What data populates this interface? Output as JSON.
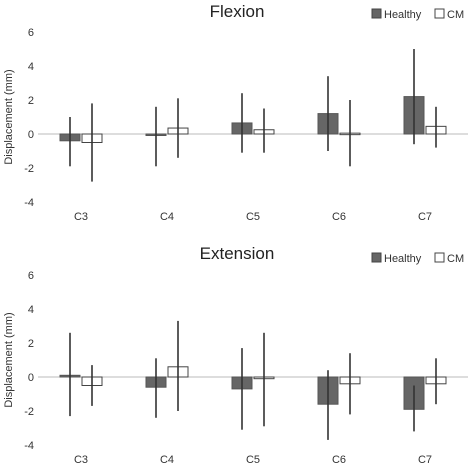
{
  "chart_data": [
    {
      "type": "bar",
      "title": "Flexion",
      "ylabel": "Displacement (mm)",
      "xlabel": "",
      "ylim": [
        -4,
        6
      ],
      "yticks": [
        -4,
        -2,
        0,
        2,
        4,
        6
      ],
      "categories": [
        "C3",
        "C4",
        "C5",
        "C6",
        "C7"
      ],
      "legend_position": "top-right",
      "series": [
        {
          "name": "Healthy",
          "color": "#666666",
          "fill": "solid",
          "values": [
            -0.4,
            -0.05,
            0.65,
            1.2,
            2.2
          ],
          "err_low": [
            -1.9,
            -1.9,
            -1.1,
            -1.0,
            -0.6
          ],
          "err_high": [
            1.0,
            1.6,
            2.4,
            3.4,
            5.0
          ]
        },
        {
          "name": "CM",
          "color": "#ffffff",
          "fill": "outline",
          "values": [
            -0.5,
            0.35,
            0.25,
            0.05,
            0.45
          ],
          "err_low": [
            -2.8,
            -1.4,
            -1.1,
            -1.9,
            -0.8
          ],
          "err_high": [
            1.8,
            2.1,
            1.5,
            2.0,
            1.6
          ]
        }
      ]
    },
    {
      "type": "bar",
      "title": "Extension",
      "ylabel": "Displacement (mm)",
      "xlabel": "",
      "ylim": [
        -4,
        6
      ],
      "yticks": [
        -4,
        -2,
        0,
        2,
        4,
        6
      ],
      "categories": [
        "C3",
        "C4",
        "C5",
        "C6",
        "C7"
      ],
      "legend_position": "top-right",
      "series": [
        {
          "name": "Healthy",
          "color": "#666666",
          "fill": "solid",
          "values": [
            0.1,
            -0.6,
            -0.7,
            -1.6,
            -1.9
          ],
          "err_low": [
            -2.3,
            -2.4,
            -3.1,
            -3.7,
            -3.2
          ],
          "err_high": [
            2.6,
            1.1,
            1.7,
            0.4,
            -0.5
          ],
          "err_from": [
            null,
            null,
            null,
            null,
            -0.5
          ]
        },
        {
          "name": "CM",
          "color": "#ffffff",
          "fill": "outline",
          "values": [
            -0.5,
            0.6,
            -0.1,
            -0.4,
            -0.4
          ],
          "err_low": [
            -1.7,
            -2.0,
            -2.9,
            -2.2,
            -1.6
          ],
          "err_high": [
            0.7,
            3.3,
            2.6,
            1.4,
            1.1
          ]
        }
      ]
    }
  ]
}
